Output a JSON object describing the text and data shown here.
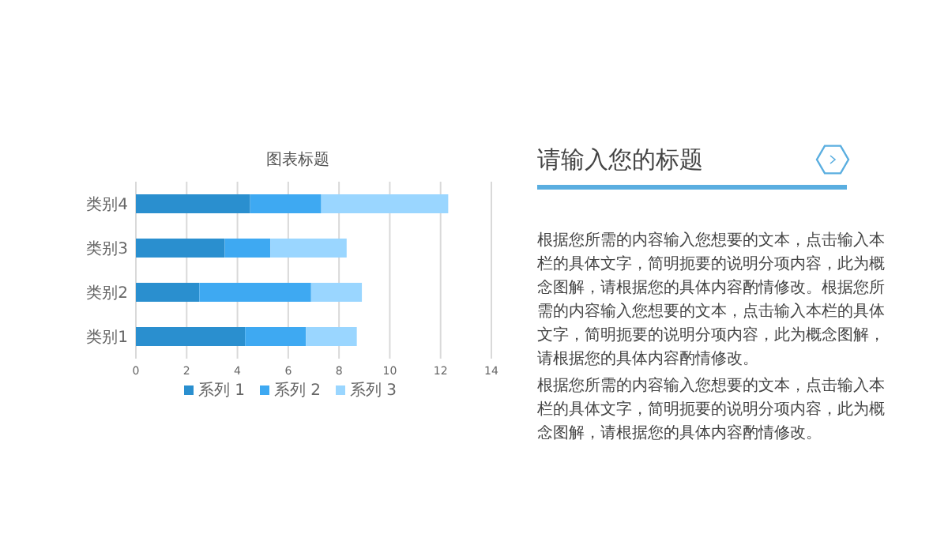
{
  "chart_data": [
    {
      "type": "bar",
      "title": "图表标题",
      "orientation": "horizontal",
      "stacked": true,
      "categories": [
        "类别4",
        "类别3",
        "类别2",
        "类别1"
      ],
      "series": [
        {
          "name": "系列 1",
          "color": "#2a8fcf",
          "values": [
            4.5,
            3.5,
            2.5,
            4.3
          ]
        },
        {
          "name": "系列 2",
          "color": "#3ea9f2",
          "values": [
            2.8,
            1.8,
            4.4,
            2.4
          ]
        },
        {
          "name": "系列 3",
          "color": "#9ad6ff",
          "values": [
            5,
            3,
            2,
            2
          ]
        }
      ],
      "xlim": [
        0,
        14
      ],
      "xticks": [
        0,
        2,
        4,
        6,
        8,
        10,
        12,
        14
      ],
      "grid": "x",
      "legend": "bottom"
    },
    {
      "type": "other",
      "title": "请输入您的标题",
      "annotations": [
        "根据您所需的内容输入您想要的文本，点击输入本栏的具体文字，简明扼要的说明分项内容，此为概念图解，请根据您的具体内容酌情修改。根据您所需的内容输入您想要的文本，点击输入本栏的具体文字，简明扼要的说明分项内容，此为概念图解，请根据您的具体内容酌情修改。",
        "根据您所需的内容输入您想要的文本，点击输入本栏的具体文字，简明扼要的说明分项内容，此为概念图解，请根据您的具体内容酌情修改。"
      ]
    }
  ]
}
